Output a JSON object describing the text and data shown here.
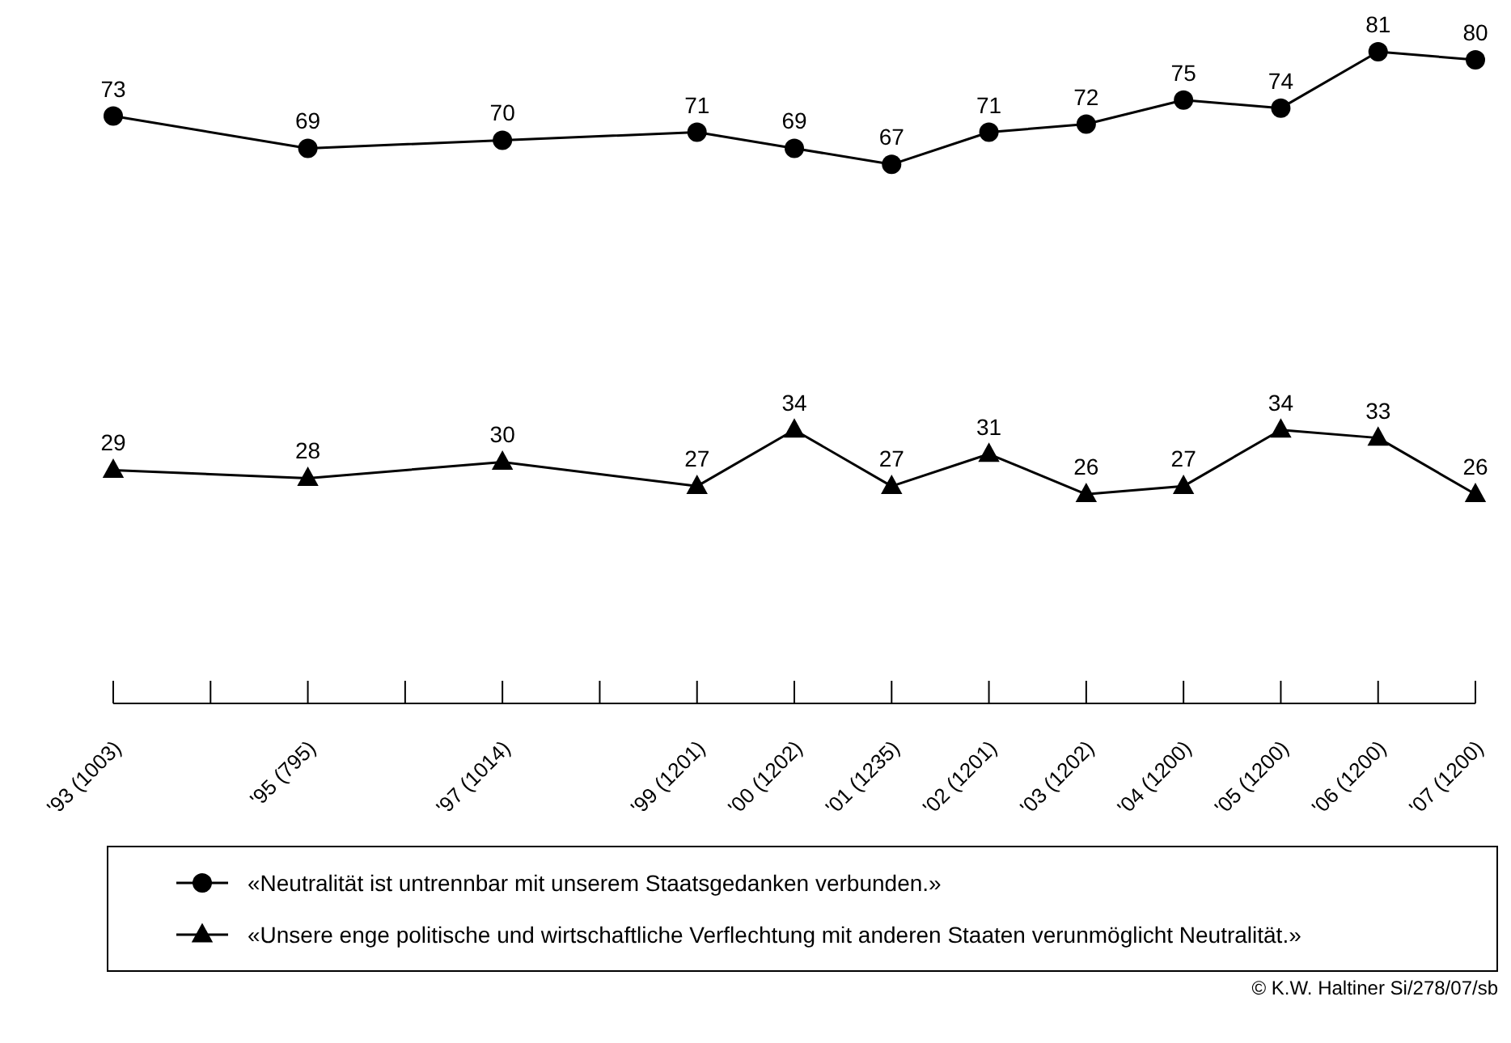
{
  "chart_data": {
    "type": "line",
    "categories": [
      "'93 (1003)",
      null,
      "'95  (795)",
      null,
      "'97 (1014)",
      null,
      "'99 (1201)",
      "'00 (1202)",
      "'01 (1235)",
      "'02 (1201)",
      "'03 (1202)",
      "'04 (1200)",
      "'05 (1200)",
      "'06 (1200)",
      "'07 (1200)"
    ],
    "series": [
      {
        "name": "«Neutralität ist untrennbar mit unserem Staatsgedanken verbunden.»",
        "color": "#000000",
        "marker": "circle",
        "values": [
          73,
          null,
          69,
          null,
          70,
          null,
          71,
          69,
          67,
          71,
          72,
          75,
          74,
          81,
          80
        ]
      },
      {
        "name": "«Unsere enge politische und wirtschaftliche Verflechtung mit anderen Staaten verunmöglicht Neutralität.»",
        "color": "#000000",
        "marker": "triangle",
        "values": [
          29,
          null,
          28,
          null,
          30,
          null,
          27,
          34,
          27,
          31,
          26,
          27,
          34,
          33,
          26
        ]
      }
    ],
    "data_labels": true,
    "tick_labels": "x",
    "legend": "bottom",
    "annotations": [
      "© K.W. Haltiner Si/278/07/sb"
    ]
  }
}
